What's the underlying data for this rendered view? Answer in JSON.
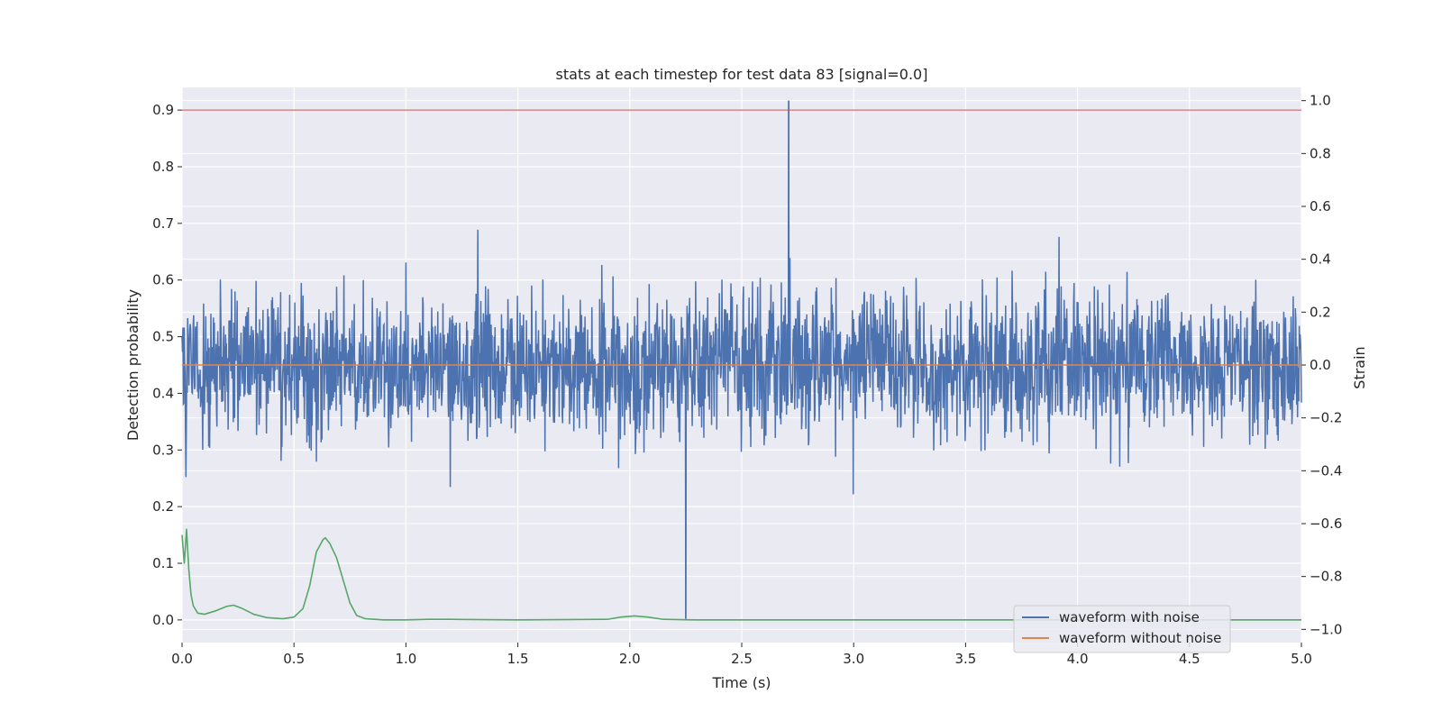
{
  "chart_data": {
    "type": "line",
    "title": "stats at each timestep for test data 83 [signal=0.0]",
    "xlabel": "Time (s)",
    "ylabel_left": "Detection probability",
    "ylabel_right": "Strain",
    "xlim": [
      0.0,
      5.0
    ],
    "ylim_left": [
      -0.04,
      0.94
    ],
    "ylim_right": [
      -1.05,
      1.05
    ],
    "x_ticks": [
      "0.0",
      "0.5",
      "1.0",
      "1.5",
      "2.0",
      "2.5",
      "3.0",
      "3.5",
      "4.0",
      "4.5",
      "5.0"
    ],
    "y_ticks_left": [
      "0.0",
      "0.1",
      "0.2",
      "0.3",
      "0.4",
      "0.5",
      "0.6",
      "0.7",
      "0.8",
      "0.9"
    ],
    "y_ticks_right": [
      "−1.0",
      "−0.8",
      "−0.6",
      "−0.4",
      "−0.2",
      "0.0",
      "0.2",
      "0.4",
      "0.6",
      "0.8",
      "1.0"
    ],
    "grid": true,
    "legend_position": "lower-right",
    "series": [
      {
        "name": "waveform with noise",
        "axis": "right",
        "color": "#4c72b0",
        "kind": "noise",
        "amplitude_range": [
          -0.96,
          1.0
        ],
        "peak_max": {
          "x": 2.71,
          "y": 1.0
        },
        "trough_min": {
          "x": 2.25,
          "y": -0.96
        }
      },
      {
        "name": "waveform without noise",
        "axis": "right",
        "color": "#dd8452",
        "x": [
          0.0,
          5.0
        ],
        "y": [
          0.0,
          0.0
        ]
      },
      {
        "axis": "left",
        "color": "#55a868",
        "x": [
          0.0,
          0.01,
          0.02,
          0.03,
          0.04,
          0.05,
          0.07,
          0.1,
          0.15,
          0.2,
          0.23,
          0.27,
          0.32,
          0.38,
          0.45,
          0.5,
          0.54,
          0.57,
          0.6,
          0.63,
          0.64,
          0.66,
          0.69,
          0.72,
          0.75,
          0.78,
          0.82,
          0.9,
          1.0,
          1.1,
          1.2,
          1.5,
          1.9,
          1.96,
          2.02,
          2.08,
          2.15,
          2.3,
          3.0,
          4.0,
          5.0
        ],
        "y": [
          0.15,
          0.1,
          0.16,
          0.09,
          0.045,
          0.025,
          0.012,
          0.01,
          0.016,
          0.024,
          0.026,
          0.02,
          0.01,
          0.004,
          0.002,
          0.005,
          0.02,
          0.06,
          0.12,
          0.142,
          0.145,
          0.135,
          0.11,
          0.07,
          0.03,
          0.008,
          0.002,
          0.0,
          0.0,
          0.001,
          0.001,
          0.0,
          0.001,
          0.005,
          0.007,
          0.005,
          0.001,
          0.0,
          0.0,
          0.0,
          0.0
        ]
      },
      {
        "axis": "left",
        "color": "#c44e52",
        "x": [
          0.0,
          5.0
        ],
        "y": [
          0.9,
          0.9
        ]
      }
    ]
  }
}
